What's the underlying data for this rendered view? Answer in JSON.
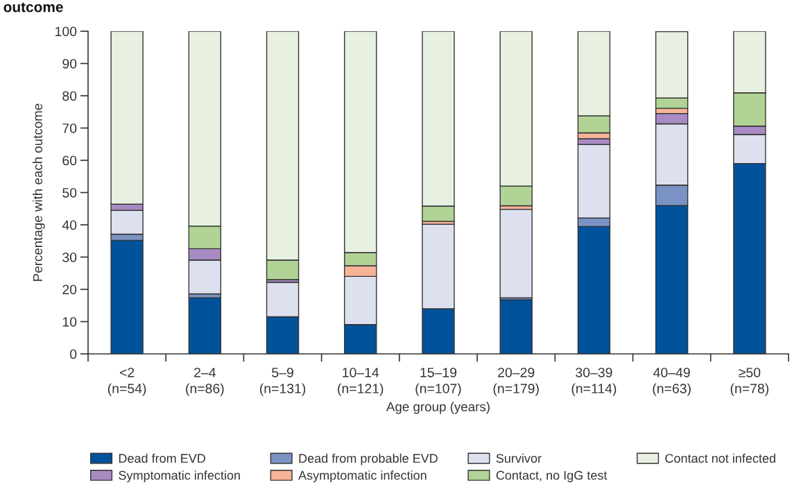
{
  "chart_data": {
    "type": "bar",
    "title": "outcome",
    "xlabel": "Age group (years)",
    "ylabel": "Percentage with each outcome",
    "categories": [
      "<2\n(n=54)",
      "2–4\n(n=86)",
      "5–9\n(n=131)",
      "10–14\n(n=121)",
      "15–19\n(n=107)",
      "20–29\n(n=179)",
      "30–39\n(n=114)",
      "40–49\n(n=63)",
      "≥50\n(n=78)"
    ],
    "stacked": true,
    "ylim": [
      0,
      100
    ],
    "yticks": [
      0,
      10,
      20,
      30,
      40,
      50,
      60,
      70,
      80,
      90,
      100
    ],
    "grid": false,
    "legend": "bottom",
    "series": [
      {
        "name": "Dead from EVD",
        "color": "#00539b",
        "values": [
          35.2,
          17.4,
          11.5,
          9.1,
          14.0,
          16.8,
          39.5,
          46.0,
          59.0
        ]
      },
      {
        "name": "Dead from probable EVD",
        "color": "#7b93c4",
        "values": [
          1.9,
          1.2,
          0,
          0,
          0,
          0.6,
          2.6,
          6.3,
          0
        ]
      },
      {
        "name": "Survivor",
        "color": "#dde1ef",
        "values": [
          7.4,
          10.5,
          10.7,
          14.9,
          26.2,
          27.4,
          22.8,
          19.0,
          9.0
        ]
      },
      {
        "name": "Symptomatic infection",
        "color": "#a98bc4",
        "values": [
          1.9,
          3.5,
          0.8,
          0,
          0,
          0,
          1.8,
          3.2,
          2.6
        ]
      },
      {
        "name": "Asymptomatic infection",
        "color": "#f7b398",
        "values": [
          0,
          0,
          0,
          3.3,
          0.9,
          1.1,
          1.8,
          1.6,
          0
        ]
      },
      {
        "name": "Contact, no IgG test",
        "color": "#b2d396",
        "values": [
          0,
          7.0,
          6.1,
          4.1,
          4.7,
          6.1,
          5.3,
          3.2,
          10.3
        ]
      },
      {
        "name": "Contact not infected",
        "color": "#e8f1e1",
        "values": [
          53.6,
          60.4,
          70.9,
          68.6,
          54.2,
          48.0,
          26.2,
          20.6,
          19.1
        ]
      }
    ]
  }
}
